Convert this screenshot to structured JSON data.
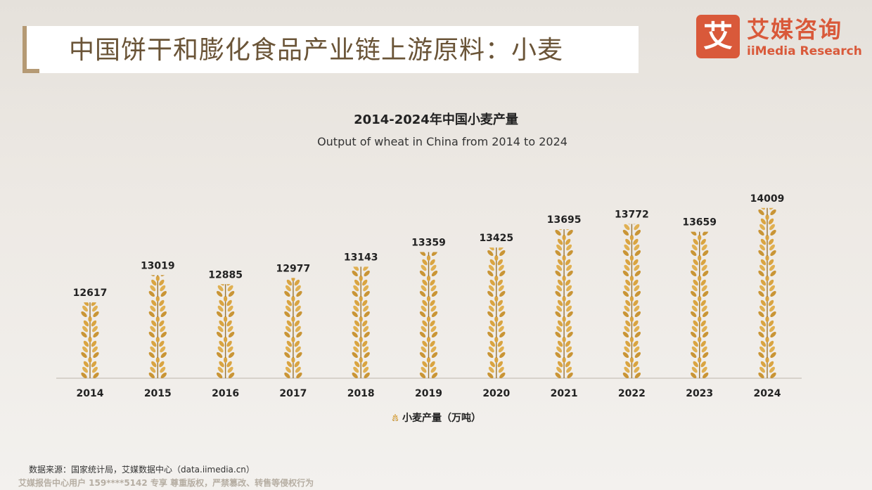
{
  "header": {
    "page_title": "中国饼干和膨化食品产业链上游原料：小麦",
    "logo_mark": "艾",
    "logo_cn": "艾媒咨询",
    "logo_en": "iiMedia Research"
  },
  "chart_data": {
    "type": "bar",
    "title": "2014-2024年中国小麦产量",
    "subtitle": "Output of wheat in China from 2014 to 2024",
    "categories": [
      "2014",
      "2015",
      "2016",
      "2017",
      "2018",
      "2019",
      "2020",
      "2021",
      "2022",
      "2023",
      "2024"
    ],
    "series": [
      {
        "name": "小麦产量（万吨）",
        "values": [
          12617,
          13019,
          12885,
          12977,
          13143,
          13359,
          13425,
          13695,
          13772,
          13659,
          14009
        ]
      }
    ],
    "ylim": [
      11500,
      14100
    ],
    "grid": false,
    "legend_position": "bottom",
    "color": "#d9a441"
  },
  "footer": {
    "source": "数据来源：国家统计局，艾媒数据中心（data.iimedia.cn）",
    "watermark": "艾媒报告中心用户 159****5142 专享 尊重版权，严禁篡改、转售等侵权行为"
  }
}
